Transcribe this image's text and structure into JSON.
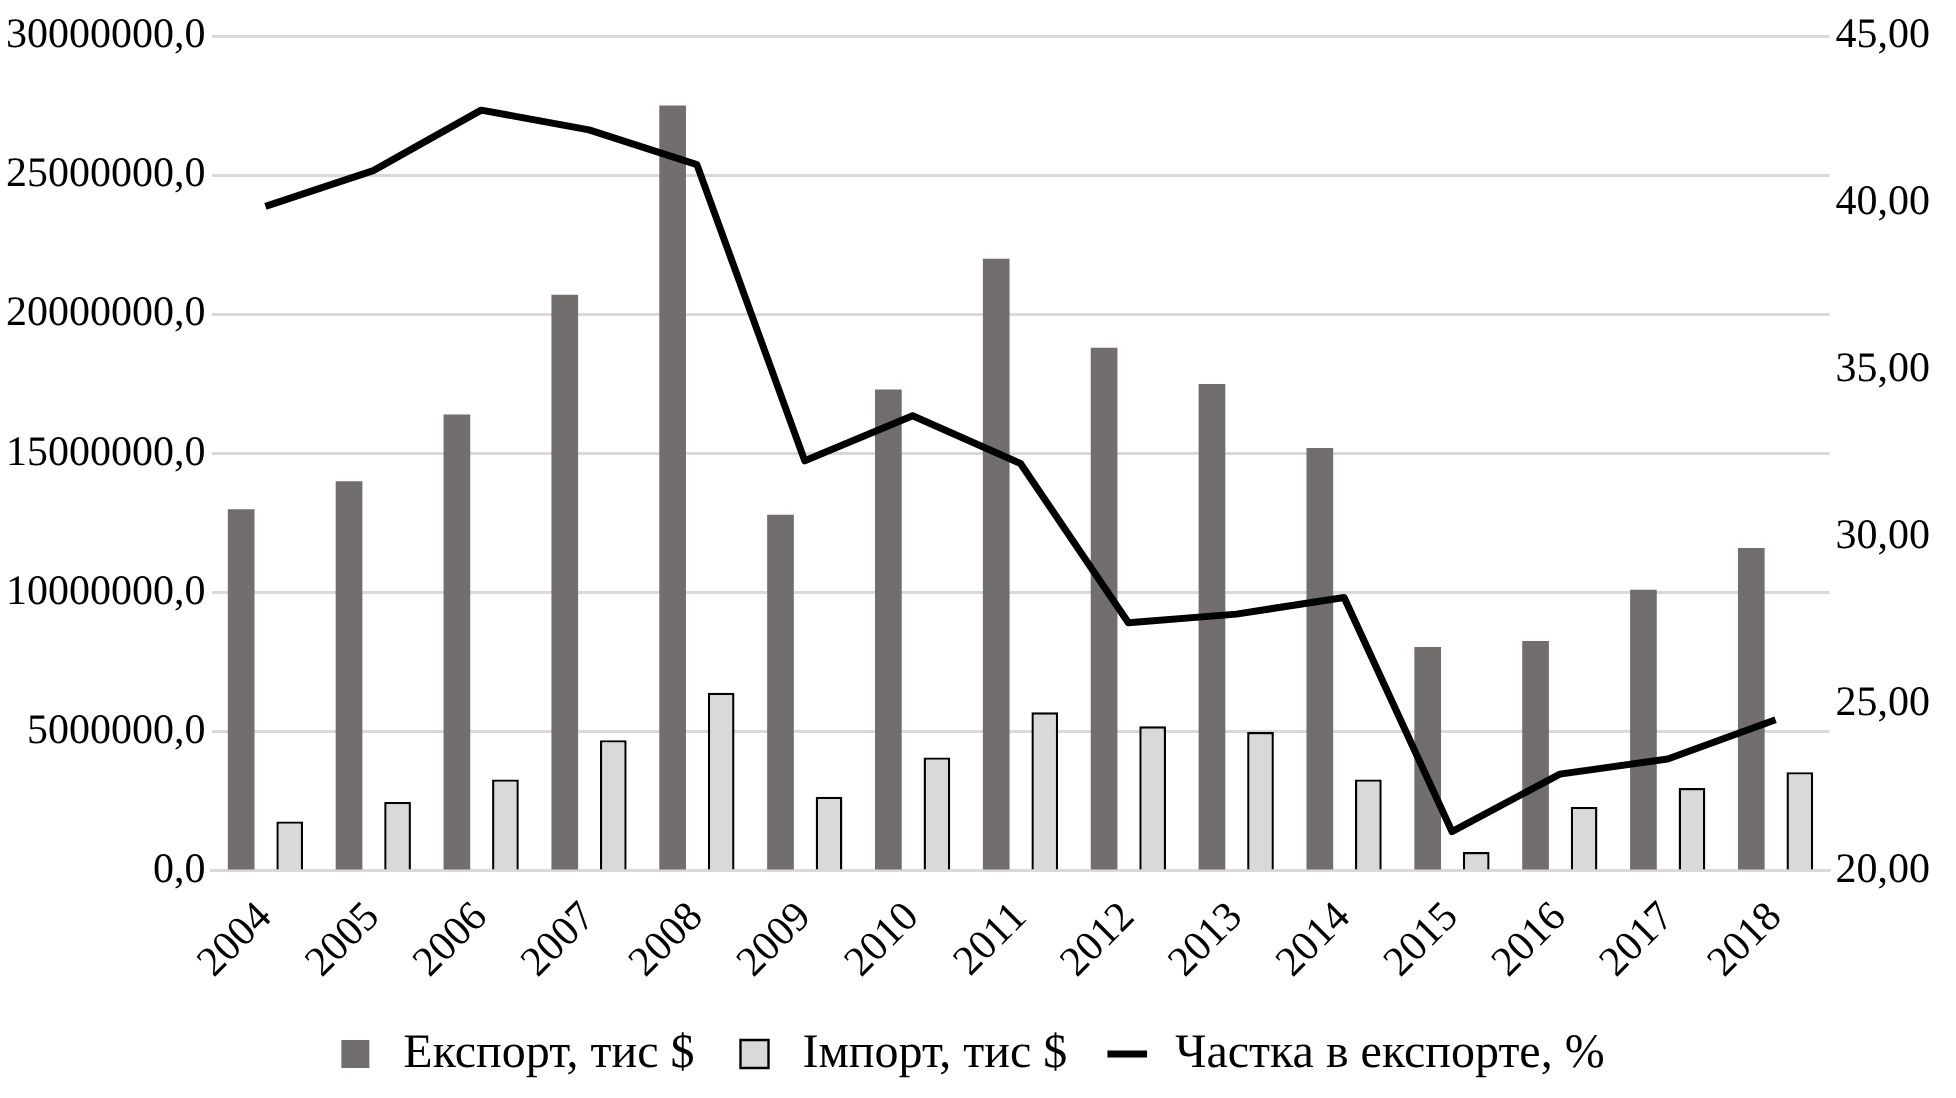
{
  "chart_data": {
    "type": "bar",
    "categories": [
      "2004",
      "2005",
      "2006",
      "2007",
      "2008",
      "2009",
      "2010",
      "2011",
      "2012",
      "2013",
      "2014",
      "2015",
      "2016",
      "2017",
      "2018"
    ],
    "series": [
      {
        "name": "Експорт, тис $",
        "color": "#736e6e",
        "values": [
          13000000,
          14000000,
          16400000,
          20700000,
          27500000,
          12800000,
          17300000,
          22000000,
          18800000,
          17500000,
          15200000,
          8050000,
          8260000,
          10100000,
          11600000
        ]
      },
      {
        "name": "Імпорт, тис $",
        "color": "#d9d9d9",
        "values": [
          1780000,
          2480000,
          3290000,
          4700000,
          6400000,
          2670000,
          4080000,
          5700000,
          5200000,
          4990000,
          3290000,
          680000,
          2300000,
          2980000,
          3550000
        ]
      },
      {
        "name": "Частка в експорте, %",
        "type": "line",
        "axis": "y2",
        "color": "#000000",
        "marker": "none",
        "values": [
          39.9,
          40.97,
          42.78,
          42.19,
          41.15,
          32.28,
          33.63,
          32.2,
          27.43,
          27.69,
          28.19,
          21.18,
          22.9,
          23.35,
          24.53
        ]
      }
    ],
    "ylim": [
      0,
      30000000
    ],
    "yticks": [
      {
        "value": 0,
        "label": "0,0"
      },
      {
        "value": 5000000,
        "label": "5000000,0"
      },
      {
        "value": 10000000,
        "label": "10000000,0"
      },
      {
        "value": 15000000,
        "label": "15000000,0"
      },
      {
        "value": 20000000,
        "label": "20000000,0"
      },
      {
        "value": 25000000,
        "label": "25000000,0"
      },
      {
        "value": 30000000,
        "label": "30000000,0"
      }
    ],
    "y2lim": [
      20,
      45
    ],
    "y2ticks": [
      {
        "value": 20,
        "label": "20,00"
      },
      {
        "value": 25,
        "label": "25,00"
      },
      {
        "value": 30,
        "label": "30,00"
      },
      {
        "value": 35,
        "label": "35,00"
      },
      {
        "value": 40,
        "label": "40,00"
      },
      {
        "value": 45,
        "label": "45,00"
      }
    ],
    "grid": "y",
    "legend": "bottom"
  }
}
